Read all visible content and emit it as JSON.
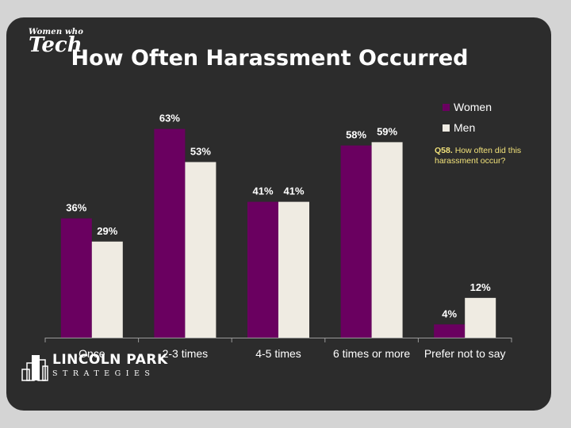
{
  "header": {
    "title": "How Often Harassment Occurred",
    "logo_line1": "Women who",
    "logo_line2": "Tech"
  },
  "note": {
    "label": "Q58.",
    "text": "How often did this harassment occur?"
  },
  "footer": {
    "logo_name": "LINCOLN PARK",
    "logo_sub": "STRATEGIES"
  },
  "colors": {
    "women": "#6a0060",
    "men": "#efebe2",
    "background": "#2c2c2c",
    "note": "#f2e27a"
  },
  "chart_data": {
    "type": "bar",
    "categories": [
      "Once",
      "2-3 times",
      "4-5 times",
      "6 times or more",
      "Prefer not to say"
    ],
    "series": [
      {
        "name": "Women",
        "values": [
          36,
          63,
          41,
          58,
          4
        ]
      },
      {
        "name": "Men",
        "values": [
          29,
          53,
          41,
          59,
          12
        ]
      }
    ],
    "value_labels": {
      "Women": [
        "36%",
        "63%",
        "41%",
        "58%",
        "4%"
      ],
      "Men": [
        "29%",
        "53%",
        "41%",
        "59%",
        "12%"
      ]
    },
    "title": "",
    "xlabel": "",
    "ylabel": "",
    "ylim": [
      0,
      70
    ],
    "grid": false,
    "legend": "top-right"
  }
}
